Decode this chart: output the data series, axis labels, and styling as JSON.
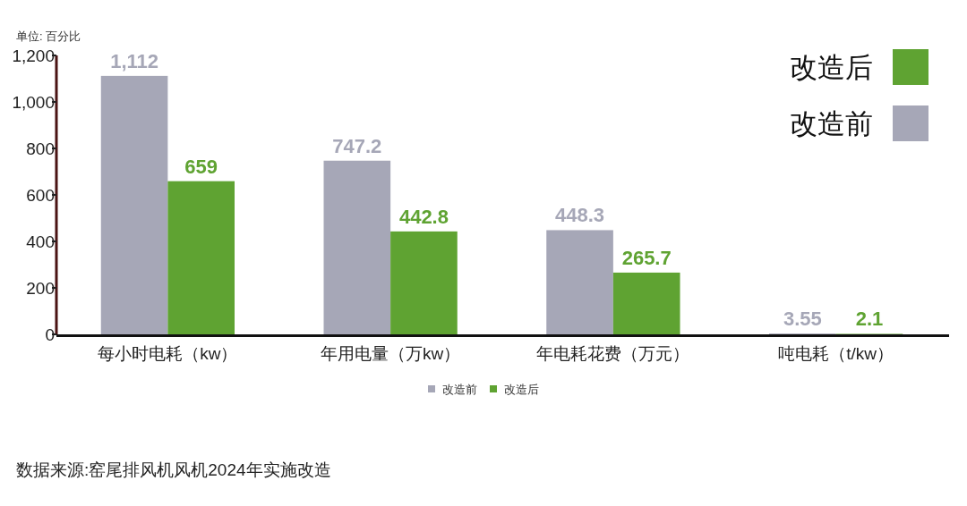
{
  "chart_data": {
    "type": "bar",
    "ylabel": "单位: 百分比",
    "categories": [
      "每小时电耗（kw）",
      "年用电量（万kw）",
      "年电耗花费（万元）",
      "吨电耗（t/kw）"
    ],
    "series": [
      {
        "name": "改造前",
        "color": "#a6a7b7",
        "values": [
          1112,
          747.2,
          448.3,
          3.55
        ],
        "value_labels": [
          "1,112",
          "747.2",
          "448.3",
          "3.55"
        ]
      },
      {
        "name": "改造后",
        "color": "#5fa332",
        "values": [
          659,
          442.8,
          265.7,
          2.1
        ],
        "value_labels": [
          "659",
          "442.8",
          "265.7",
          "2.1"
        ]
      }
    ],
    "ylim": [
      0,
      1200
    ],
    "yticks": [
      0,
      200,
      400,
      600,
      800,
      {
        "value": 1000,
        "label": "1,000"
      },
      {
        "value": 1200,
        "label": "1,200"
      }
    ],
    "legend": "bottom",
    "annotations": [
      "数据来源:窑尾排风机风机2024年实施改造"
    ]
  }
}
